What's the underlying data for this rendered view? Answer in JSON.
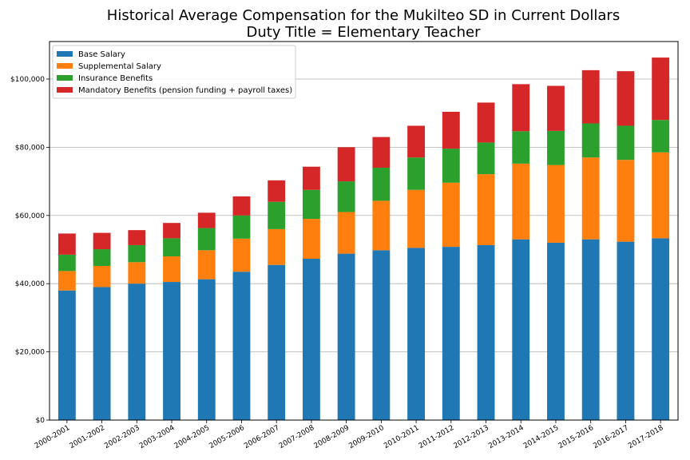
{
  "chart_data": {
    "type": "bar",
    "stacked": true,
    "title": "Historical Average Compensation for the Mukilteo SD in Current Dollars",
    "subtitle": "Duty Title = Elementary Teacher",
    "xlabel": "",
    "ylabel": "",
    "ylim": [
      0,
      111000
    ],
    "yticks": [
      0,
      20000,
      40000,
      60000,
      80000,
      100000
    ],
    "ytick_labels": [
      "$0",
      "$20,000",
      "$40,000",
      "$60,000",
      "$80,000",
      "$100,000"
    ],
    "grid": "horizontal",
    "legend_position": "top-left",
    "categories": [
      "2000-2001",
      "2001-2002",
      "2002-2003",
      "2003-2004",
      "2004-2005",
      "2005-2006",
      "2006-2007",
      "2007-2008",
      "2008-2009",
      "2009-2010",
      "2010-2011",
      "2011-2012",
      "2012-2013",
      "2013-2014",
      "2014-2015",
      "2015-2016",
      "2016-2017",
      "2017-2018"
    ],
    "series": [
      {
        "name": "Base Salary",
        "color": "#1f77b4",
        "values": [
          38000,
          39000,
          40000,
          40500,
          41300,
          43500,
          45500,
          47300,
          48800,
          49800,
          50500,
          50800,
          51300,
          53000,
          52000,
          53000,
          52300,
          53300
        ]
      },
      {
        "name": "Supplemental Salary",
        "color": "#ff7f0e",
        "values": [
          5700,
          6200,
          6300,
          7500,
          8500,
          9700,
          10500,
          11700,
          12200,
          14500,
          17000,
          18800,
          20800,
          22200,
          22800,
          24000,
          24000,
          25200
        ]
      },
      {
        "name": "Insurance Benefits",
        "color": "#2ca02c",
        "values": [
          4800,
          4900,
          5000,
          5300,
          6500,
          6800,
          8000,
          8500,
          9000,
          9700,
          9500,
          10000,
          9300,
          9500,
          10000,
          10000,
          10000,
          9500
        ]
      },
      {
        "name": "Mandatory Benefits (pension funding + payroll taxes)",
        "color": "#d62728",
        "values": [
          6200,
          4800,
          4400,
          4500,
          4500,
          5600,
          6300,
          6800,
          10000,
          9000,
          9300,
          10800,
          11700,
          13800,
          13200,
          15600,
          16000,
          18300
        ]
      }
    ]
  }
}
